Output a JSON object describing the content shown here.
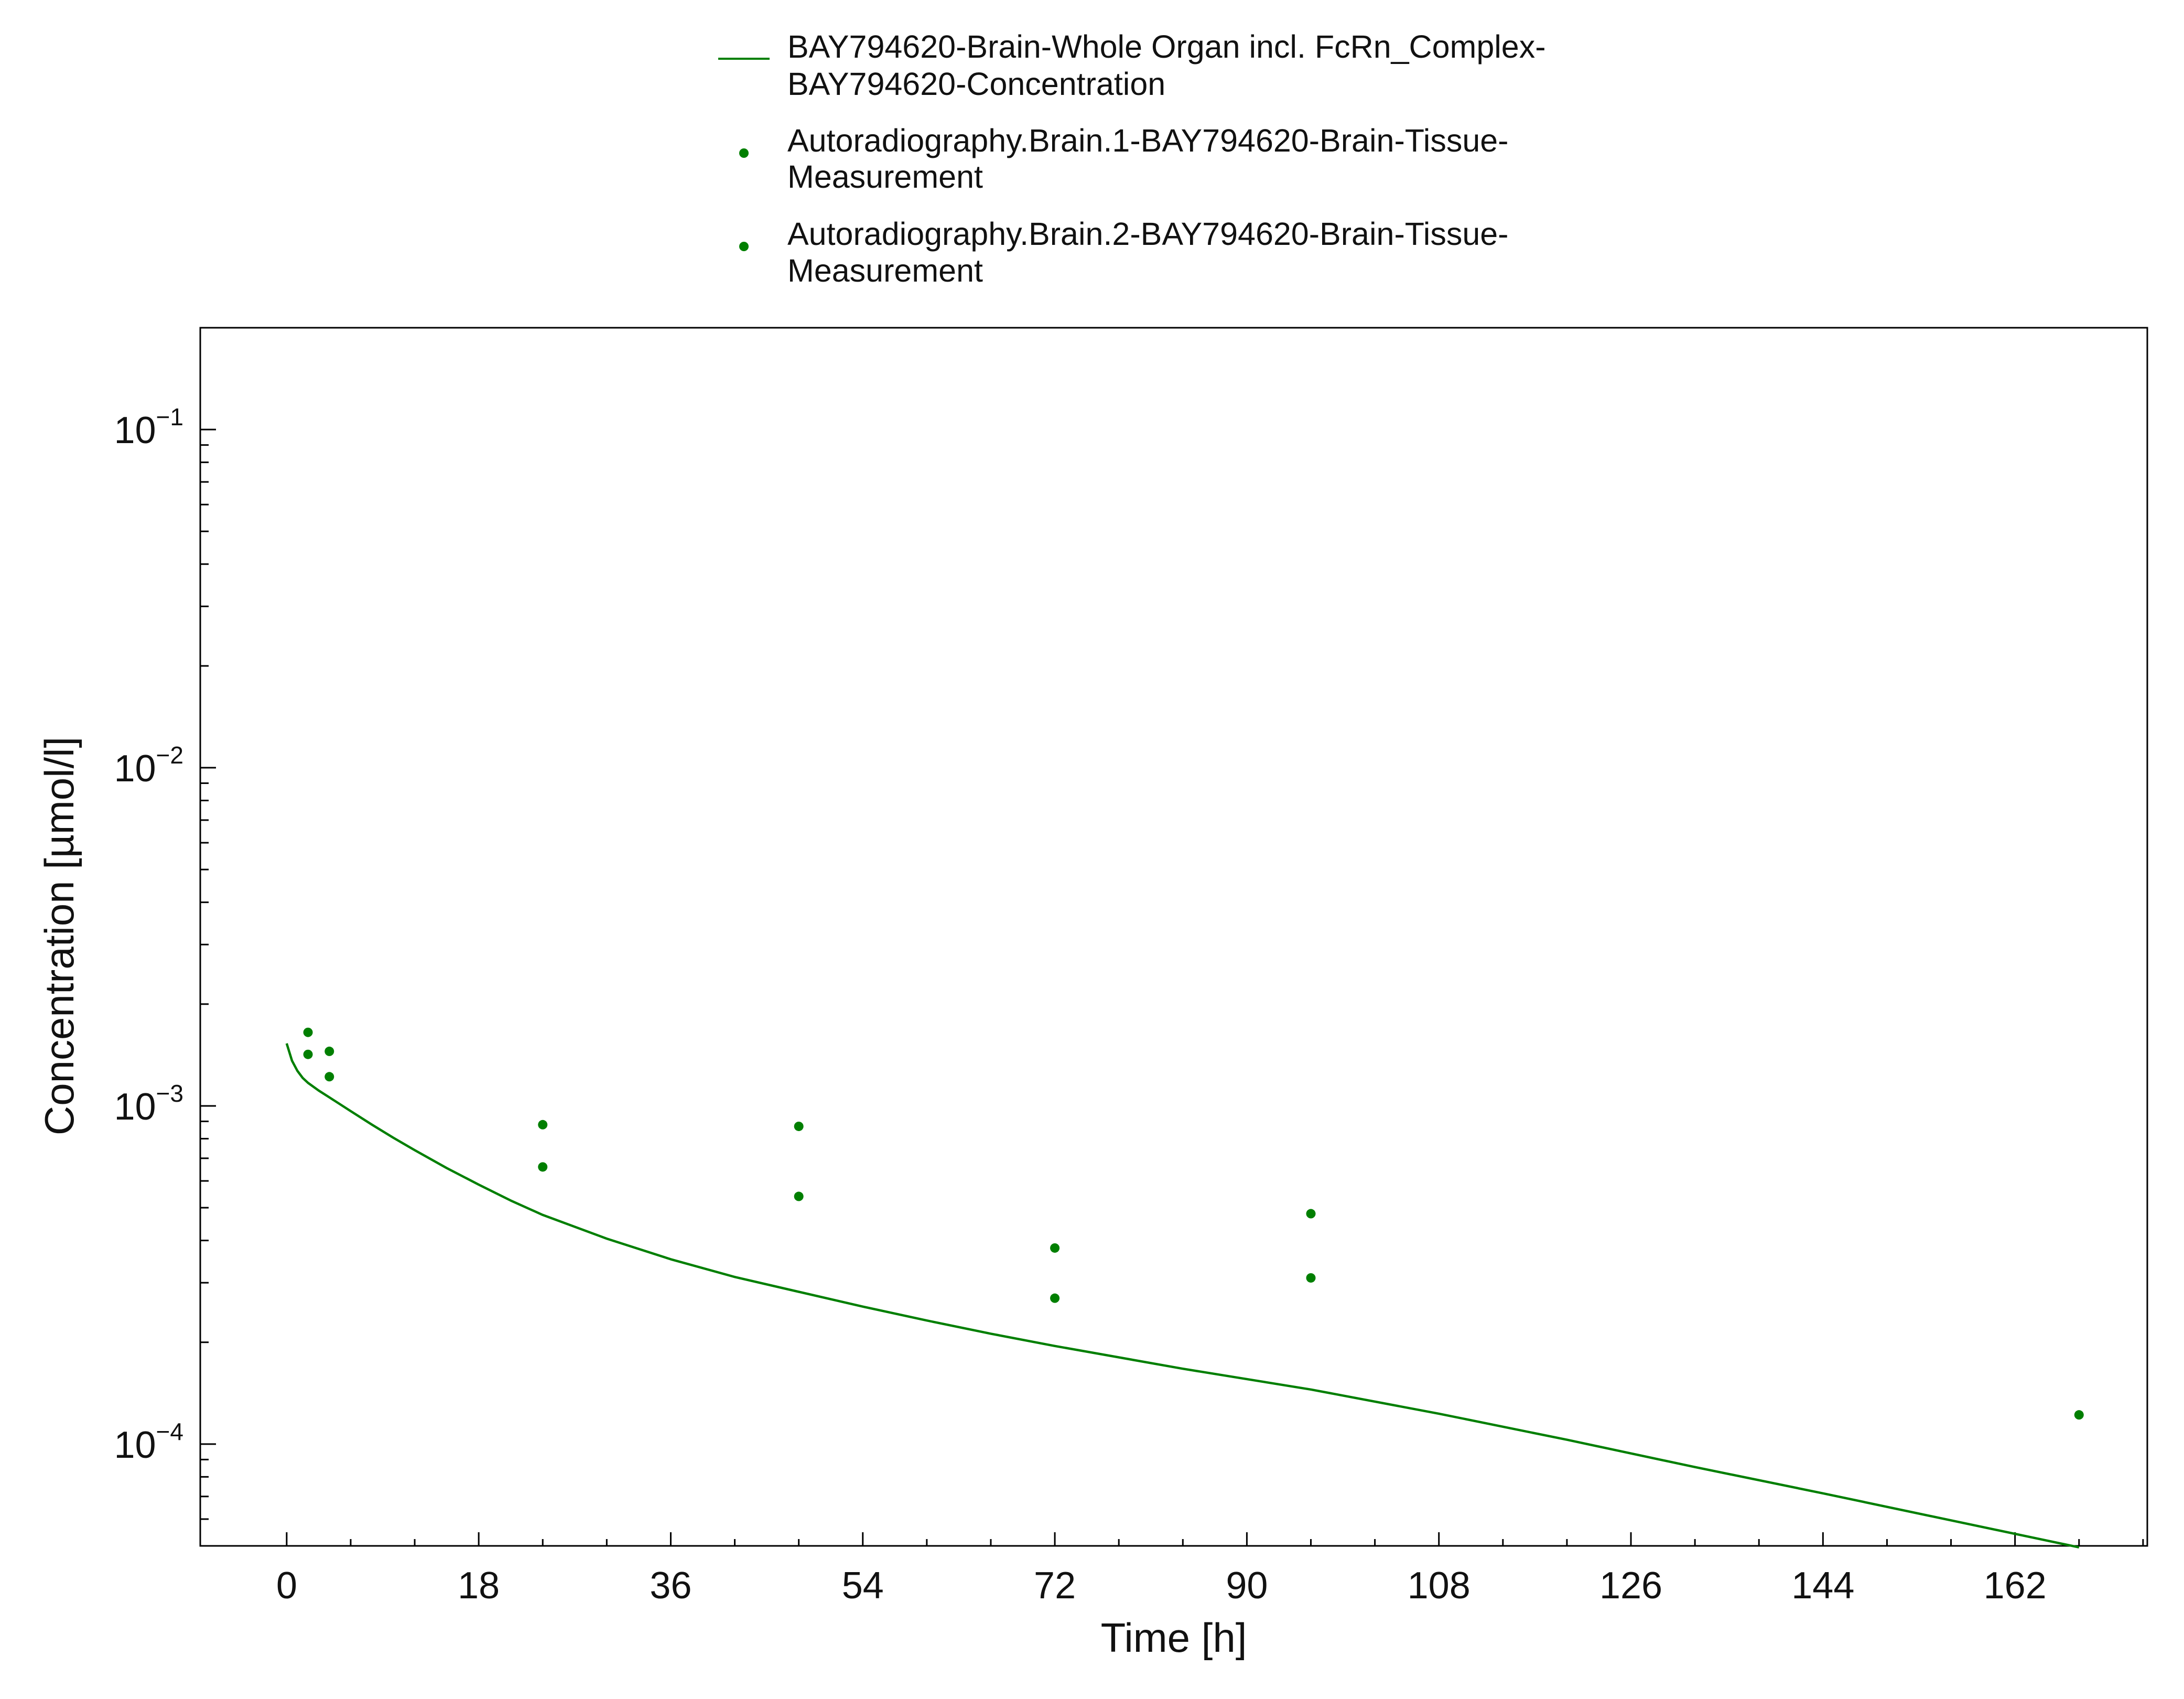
{
  "chart_data": {
    "type": "line",
    "xlabel": "Time [h]",
    "ylabel": "Concentration [µmol/l]",
    "x_scale": "linear",
    "y_scale": "log",
    "xlim": [
      -8.1,
      174.4
    ],
    "ylim": [
      5e-05,
      0.2
    ],
    "x_ticks": [
      0,
      18,
      36,
      54,
      72,
      90,
      108,
      126,
      144,
      162
    ],
    "y_ticks": [
      {
        "value": 0.0001,
        "base": "10",
        "exponent": "−4"
      },
      {
        "value": 0.001,
        "base": "10",
        "exponent": "−3"
      },
      {
        "value": 0.01,
        "base": "10",
        "exponent": "−2"
      },
      {
        "value": 0.1,
        "base": "10",
        "exponent": "−1"
      }
    ],
    "grid": false,
    "legend_position": "top-center",
    "series": [
      {
        "name_lines": [
          "BAY794620-Brain-Whole Organ incl. FcRn_Complex-",
          "BAY794620-Concentration"
        ],
        "kind": "line",
        "color": "#007f00",
        "x": [
          0,
          0.5,
          1,
          1.5,
          2,
          3,
          4,
          6,
          8,
          10,
          12,
          15,
          18,
          21,
          24,
          30,
          36,
          42,
          48,
          54,
          60,
          66,
          72,
          84,
          96,
          108,
          120,
          132,
          144,
          156,
          168
        ],
        "y": [
          0.00153,
          0.00136,
          0.00127,
          0.00121,
          0.00117,
          0.00111,
          0.00106,
          0.000965,
          0.00088,
          0.000805,
          0.00074,
          0.000655,
          0.000585,
          0.000525,
          0.000476,
          0.000405,
          0.000352,
          0.000312,
          0.000282,
          0.000255,
          0.000232,
          0.000212,
          0.000195,
          0.000167,
          0.000145,
          0.000123,
          0.000103,
          8.55e-05,
          7.15e-05,
          5.95e-05,
          4.95e-05
        ]
      },
      {
        "name_lines": [
          "Autoradiography.Brain.1-BAY794620-Brain-Tissue-",
          "Measurement"
        ],
        "kind": "scatter",
        "color": "#007f00",
        "x": [
          2,
          4,
          24,
          48,
          72,
          96,
          168
        ],
        "y": [
          0.00165,
          0.00145,
          0.00088,
          0.00087,
          0.00038,
          0.00048,
          0.000122
        ]
      },
      {
        "name_lines": [
          "Autoradiography.Brain.2-BAY794620-Brain-Tissue-",
          "Measurement"
        ],
        "kind": "scatter",
        "color": "#007f00",
        "x": [
          2,
          4,
          24,
          48,
          72,
          96
        ],
        "y": [
          0.00142,
          0.00122,
          0.00066,
          0.00054,
          0.00027,
          0.00031
        ]
      }
    ]
  }
}
